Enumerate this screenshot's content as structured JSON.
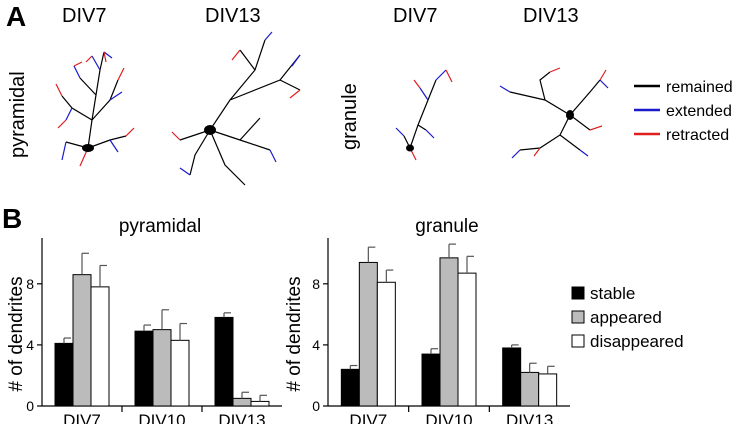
{
  "panel_a": {
    "letter": "A",
    "columns": [
      "DIV7",
      "DIV13",
      "DIV7",
      "DIV13"
    ],
    "rows": [
      "pyramidal",
      "granule"
    ],
    "legend": [
      {
        "label": "remained",
        "color": "#000000"
      },
      {
        "label": "extended",
        "color": "#1a1acc"
      },
      {
        "label": "retracted",
        "color": "#e01e1e"
      }
    ]
  },
  "panel_b": {
    "letter": "B",
    "legend": [
      {
        "label": "stable",
        "color": "#000000"
      },
      {
        "label": "appeared",
        "color": "#bbbbbb"
      },
      {
        "label": "disappeared",
        "color": "#ffffff"
      }
    ]
  },
  "chart_data": [
    {
      "type": "bar",
      "title": "pyramidal",
      "ylabel": "# of dendrites",
      "xlabel": "",
      "ylim": [
        0,
        11
      ],
      "yticks": [
        0,
        4,
        8
      ],
      "categories": [
        "DIV7",
        "DIV10",
        "DIV13"
      ],
      "series": [
        {
          "name": "stable",
          "color": "#000000",
          "values": [
            4.1,
            4.9,
            5.8
          ],
          "errors": [
            0.35,
            0.4,
            0.3
          ]
        },
        {
          "name": "appeared",
          "color": "#bbbbbb",
          "values": [
            8.6,
            5.0,
            0.5
          ],
          "errors": [
            1.4,
            1.3,
            0.4
          ]
        },
        {
          "name": "disappeared",
          "color": "#ffffff",
          "values": [
            7.8,
            4.3,
            0.3
          ],
          "errors": [
            1.4,
            1.1,
            0.4
          ]
        }
      ]
    },
    {
      "type": "bar",
      "title": "granule",
      "ylabel": "# of dendrites",
      "xlabel": "",
      "ylim": [
        0,
        11
      ],
      "yticks": [
        0,
        4,
        8
      ],
      "categories": [
        "DIV7",
        "DIV10",
        "DIV13"
      ],
      "series": [
        {
          "name": "stable",
          "color": "#000000",
          "values": [
            2.4,
            3.4,
            3.8
          ],
          "errors": [
            0.25,
            0.35,
            0.2
          ]
        },
        {
          "name": "appeared",
          "color": "#bbbbbb",
          "values": [
            9.4,
            9.7,
            2.2
          ],
          "errors": [
            1.0,
            0.9,
            0.6
          ]
        },
        {
          "name": "disappeared",
          "color": "#ffffff",
          "values": [
            8.1,
            8.7,
            2.1
          ],
          "errors": [
            0.8,
            1.1,
            0.5
          ]
        }
      ]
    }
  ]
}
